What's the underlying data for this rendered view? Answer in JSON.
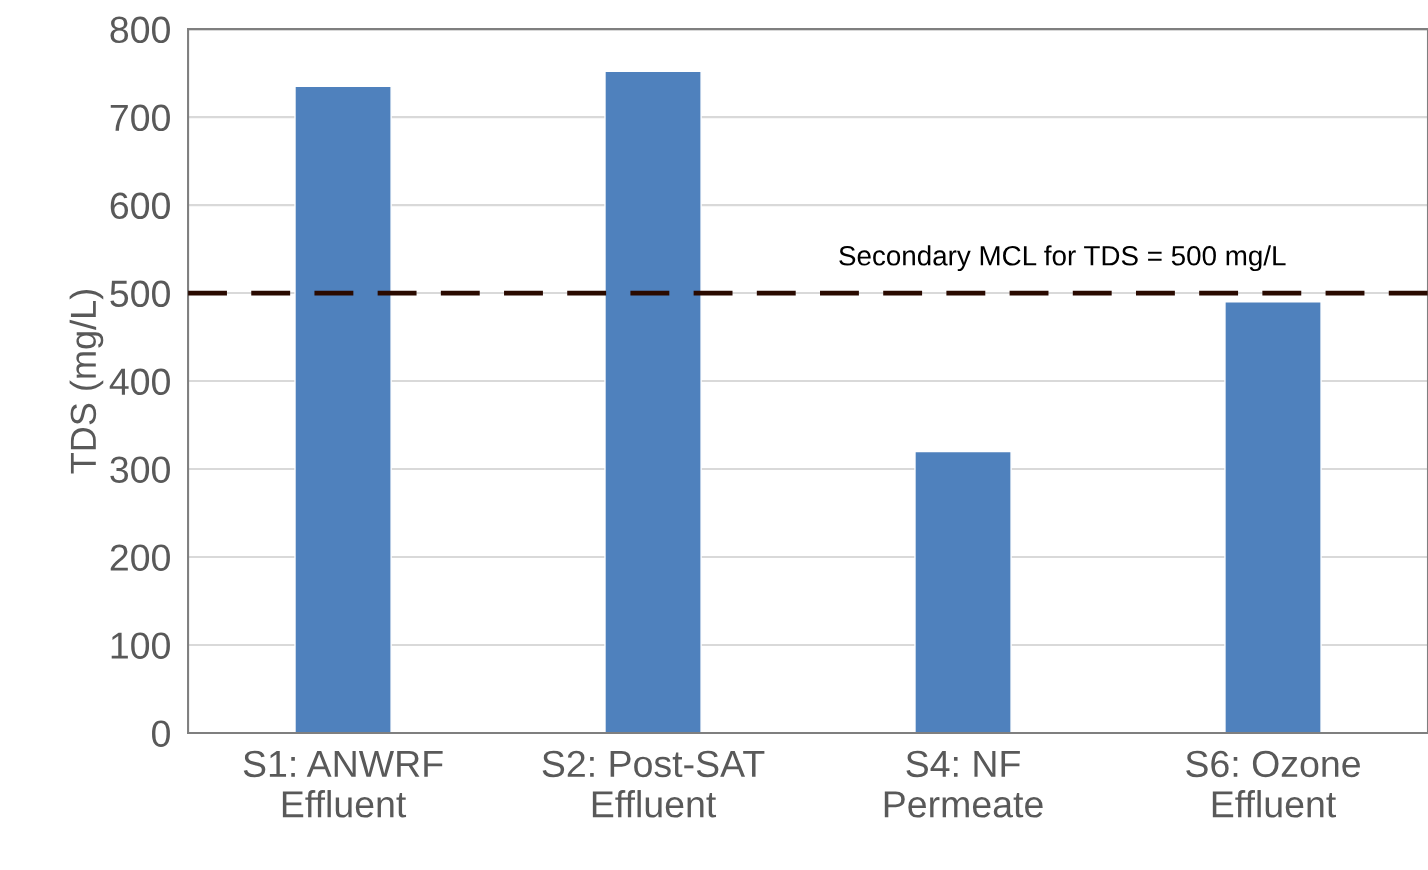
{
  "chart_data": {
    "type": "bar",
    "categories": [
      "S1: ANWRF\nEffluent",
      "S2: Post-SAT\nEffluent",
      "S4: NF\nPermeate",
      "S6: Ozone\nEffluent"
    ],
    "values": [
      735,
      752,
      320,
      490
    ],
    "color": "#4f81bd",
    "ylabel": "TDS (mg/L)",
    "ylim": [
      0,
      800
    ],
    "yticks": [
      0,
      100,
      200,
      300,
      400,
      500,
      600,
      700,
      800
    ],
    "grid": "y",
    "ref_lines": [
      {
        "axis": "y",
        "value": 500,
        "label": "Secondary MCL for TDS = 500 mg/L",
        "color": "#2a0a00",
        "line_style": "dashed"
      }
    ]
  }
}
